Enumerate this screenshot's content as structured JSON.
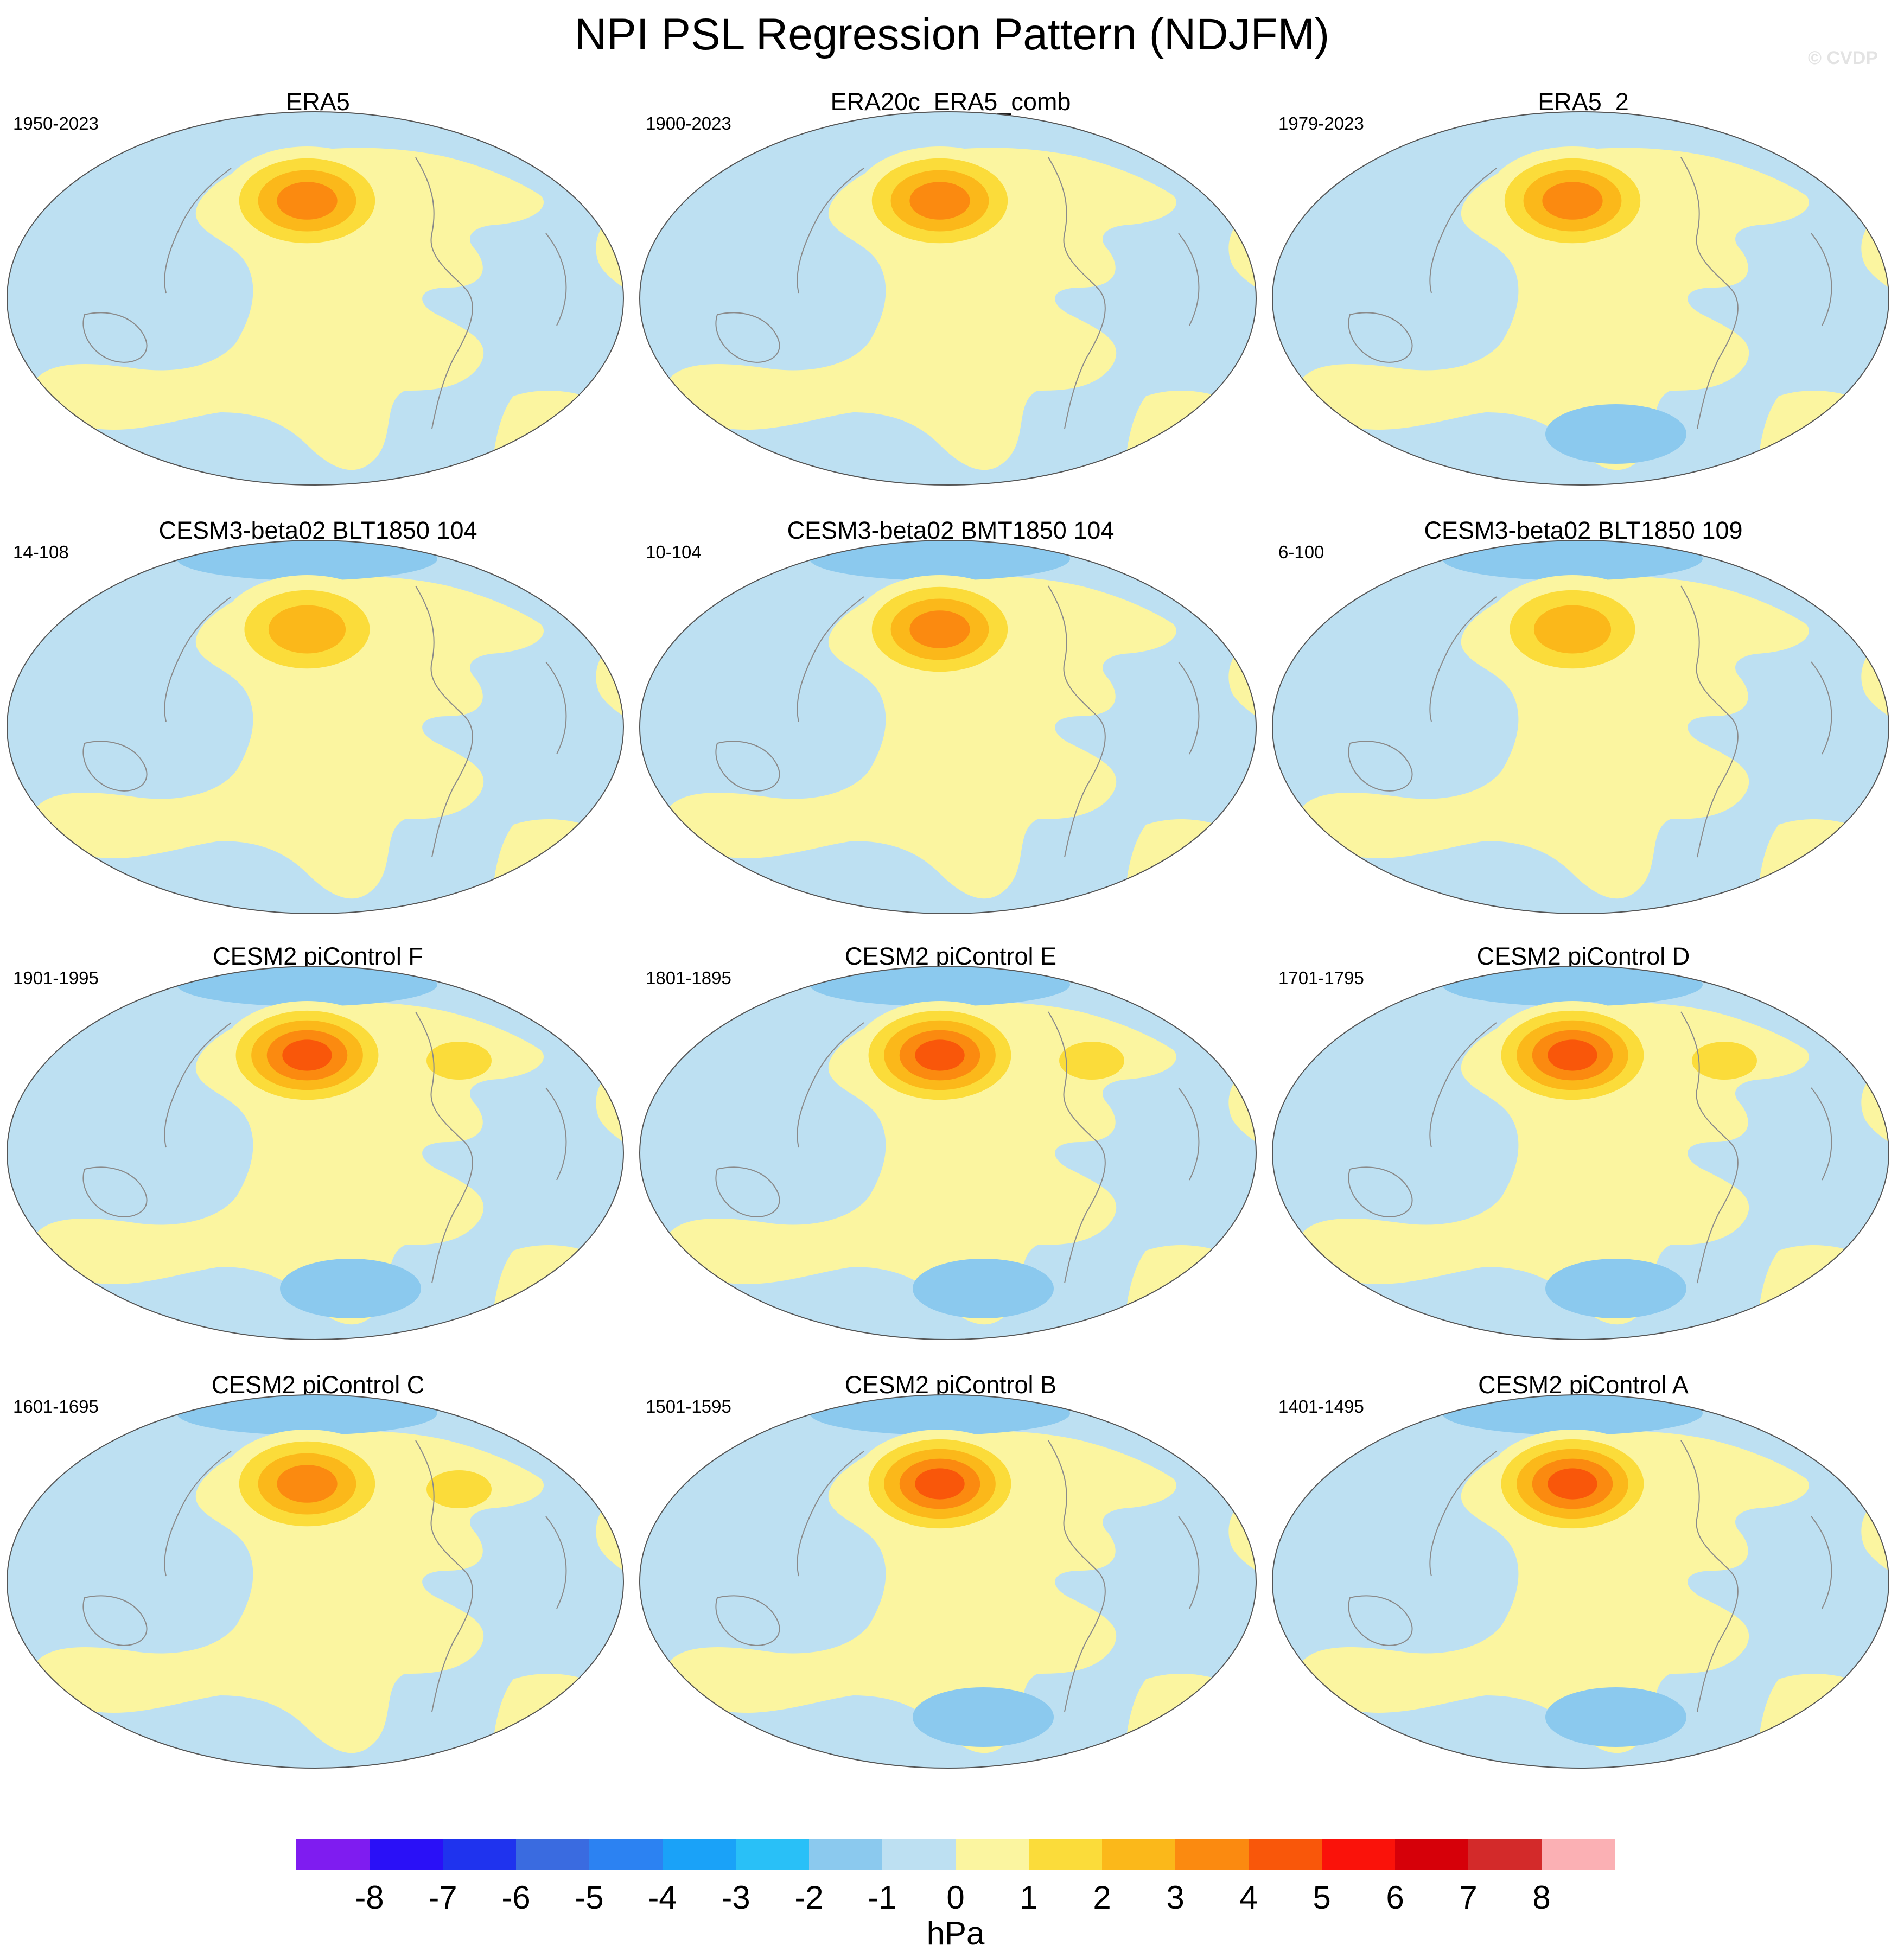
{
  "title": "NPI PSL Regression Pattern (NDJFM)",
  "watermark": "© CVDP",
  "chart_data": {
    "type": "heatmap",
    "projection": "Robinson (world, Pacific-centred)",
    "variable": "PSL regression onto NPI",
    "season": "NDJFM",
    "units": "hPa",
    "colorbar": {
      "levels": [
        -8,
        -7,
        -6,
        -5,
        -4,
        -3,
        -2,
        -1,
        0,
        1,
        2,
        3,
        4,
        5,
        6,
        7,
        8
      ],
      "labels": [
        "-8",
        "-7",
        "-6",
        "-5",
        "-4",
        "-3",
        "-2",
        "-1",
        "0",
        "1",
        "2",
        "3",
        "4",
        "5",
        "6",
        "7",
        "8"
      ],
      "colors": [
        "#7f1cf0",
        "#2a10f7",
        "#1f33ee",
        "#3a6be0",
        "#2c82f2",
        "#1aa2f8",
        "#29c0f7",
        "#8bc9ee",
        "#bde0f2",
        "#fbf5a0",
        "#fbdc3a",
        "#fbb81a",
        "#fb8a10",
        "#f9570a",
        "#fa120a",
        "#d60009",
        "#d32a2a",
        "#fbb0b4"
      ],
      "label": "hPa"
    },
    "panels": [
      {
        "title": "ERA5",
        "period": "1950-2023",
        "npac_max": 4,
        "extra_lows": [],
        "extra_highs": []
      },
      {
        "title": "ERA20c_ERA5_comb",
        "period": "1900-2023",
        "npac_max": 4,
        "extra_lows": [],
        "extra_highs": []
      },
      {
        "title": "ERA5_2",
        "period": "1979-2023",
        "npac_max": 4,
        "extra_lows": [
          "south-pacific"
        ],
        "extra_highs": []
      },
      {
        "title": "CESM3-beta02 BLT1850 104",
        "period": "14-108",
        "npac_max": 3,
        "extra_lows": [
          "arctic"
        ],
        "extra_highs": []
      },
      {
        "title": "CESM3-beta02 BMT1850 104",
        "period": "10-104",
        "npac_max": 4,
        "extra_lows": [
          "arctic"
        ],
        "extra_highs": []
      },
      {
        "title": "CESM3-beta02 BLT1850 109",
        "period": "6-100",
        "npac_max": 3,
        "extra_lows": [
          "arctic"
        ],
        "extra_highs": []
      },
      {
        "title": "CESM2 piControl F",
        "period": "1901-1995",
        "npac_max": 5,
        "extra_lows": [
          "arctic",
          "south-pacific"
        ],
        "extra_highs": [
          "north-atlantic"
        ]
      },
      {
        "title": "CESM2 piControl E",
        "period": "1801-1895",
        "npac_max": 5,
        "extra_lows": [
          "arctic",
          "south-pacific"
        ],
        "extra_highs": [
          "north-atlantic"
        ]
      },
      {
        "title": "CESM2 piControl D",
        "period": "1701-1795",
        "npac_max": 5,
        "extra_lows": [
          "arctic",
          "south-pacific"
        ],
        "extra_highs": [
          "north-atlantic"
        ]
      },
      {
        "title": "CESM2 piControl C",
        "period": "1601-1695",
        "npac_max": 4,
        "extra_lows": [
          "arctic"
        ],
        "extra_highs": [
          "north-atlantic"
        ]
      },
      {
        "title": "CESM2 piControl B",
        "period": "1501-1595",
        "npac_max": 5,
        "extra_lows": [
          "arctic",
          "south-pacific"
        ],
        "extra_highs": []
      },
      {
        "title": "CESM2 piControl A",
        "period": "1401-1495",
        "npac_max": 5,
        "extra_lows": [
          "arctic",
          "south-pacific"
        ],
        "extra_highs": []
      }
    ]
  }
}
